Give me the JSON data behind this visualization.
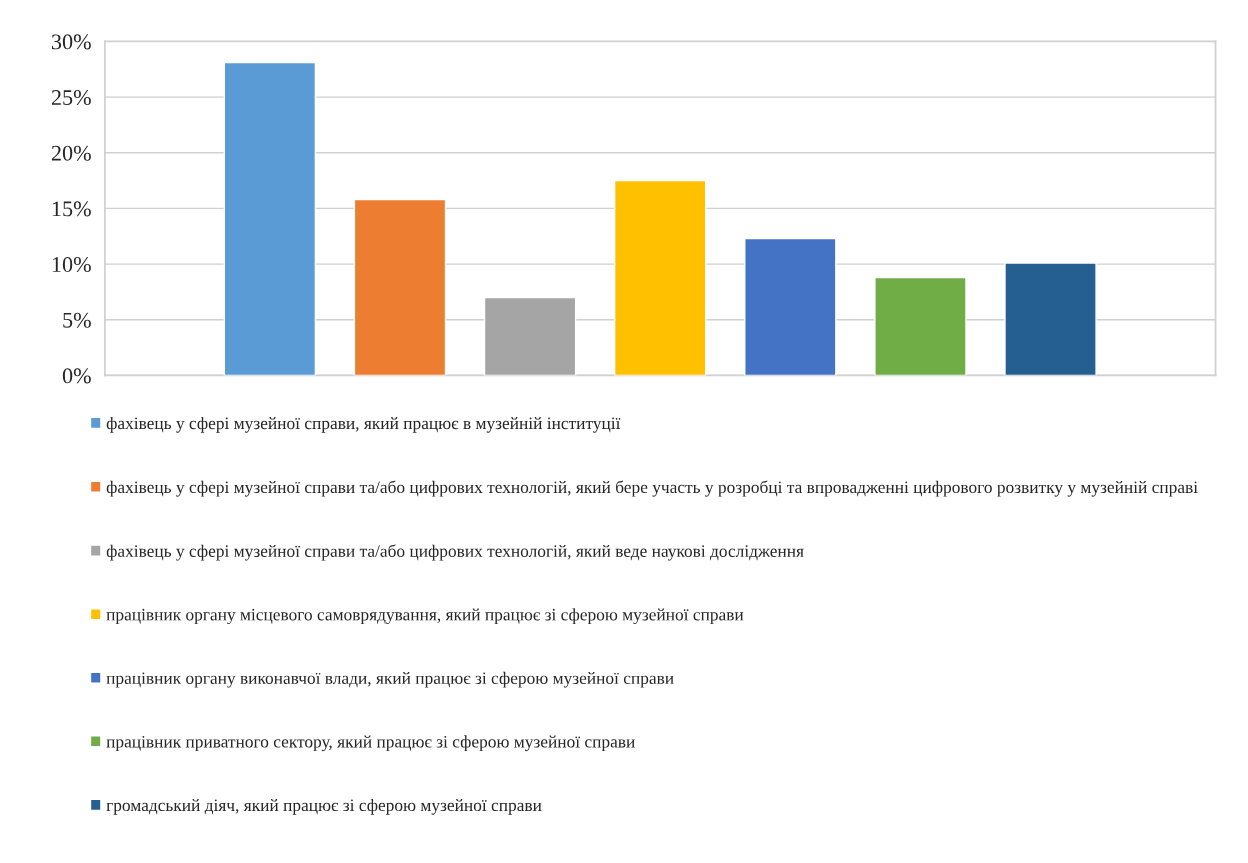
{
  "chart_data": {
    "type": "bar",
    "categories": [
      null
    ],
    "series": [
      {
        "name": "фахівець у сфері музейної справи, який працює в музейній інституції",
        "color": "#5b9bd5",
        "values": [
          28.1
        ]
      },
      {
        "name": "фахівець у сфері музейної справи та/або цифрових технологій, який бере участь у розробці та впровадженні цифрового розвитку у музейній справі",
        "color": "#ed7d31",
        "values": [
          15.8
        ]
      },
      {
        "name": "фахівець у сфері музейної справи та/або цифрових технологій, який веде наукові дослідження",
        "color": "#a5a5a5",
        "values": [
          7.0
        ]
      },
      {
        "name": "працівник органу місцевого самоврядування, який працює зі сферою музейної справи",
        "color": "#ffc000",
        "values": [
          17.5
        ]
      },
      {
        "name": "працівник органу виконавчої влади, який працює зі сферою музейної справи",
        "color": "#4472c4",
        "values": [
          12.3
        ]
      },
      {
        "name": "працівник приватного сектору, який працює зі сферою музейної справи",
        "color": "#70ad47",
        "values": [
          8.8
        ]
      },
      {
        "name": "громадський діяч, який працює зі сферою музейної справи",
        "color": "#255e91",
        "values": [
          10.1
        ]
      }
    ],
    "ylim": [
      0,
      30
    ],
    "yticks": [
      {
        "value": 0,
        "label": "0%"
      },
      {
        "value": 5,
        "label": "5%"
      },
      {
        "value": 10,
        "label": "10%"
      },
      {
        "value": 15,
        "label": "15%"
      },
      {
        "value": 20,
        "label": "20%"
      },
      {
        "value": 25,
        "label": "25%"
      },
      {
        "value": 30,
        "label": "30%"
      }
    ],
    "grid": "y",
    "legend": "bottom"
  }
}
